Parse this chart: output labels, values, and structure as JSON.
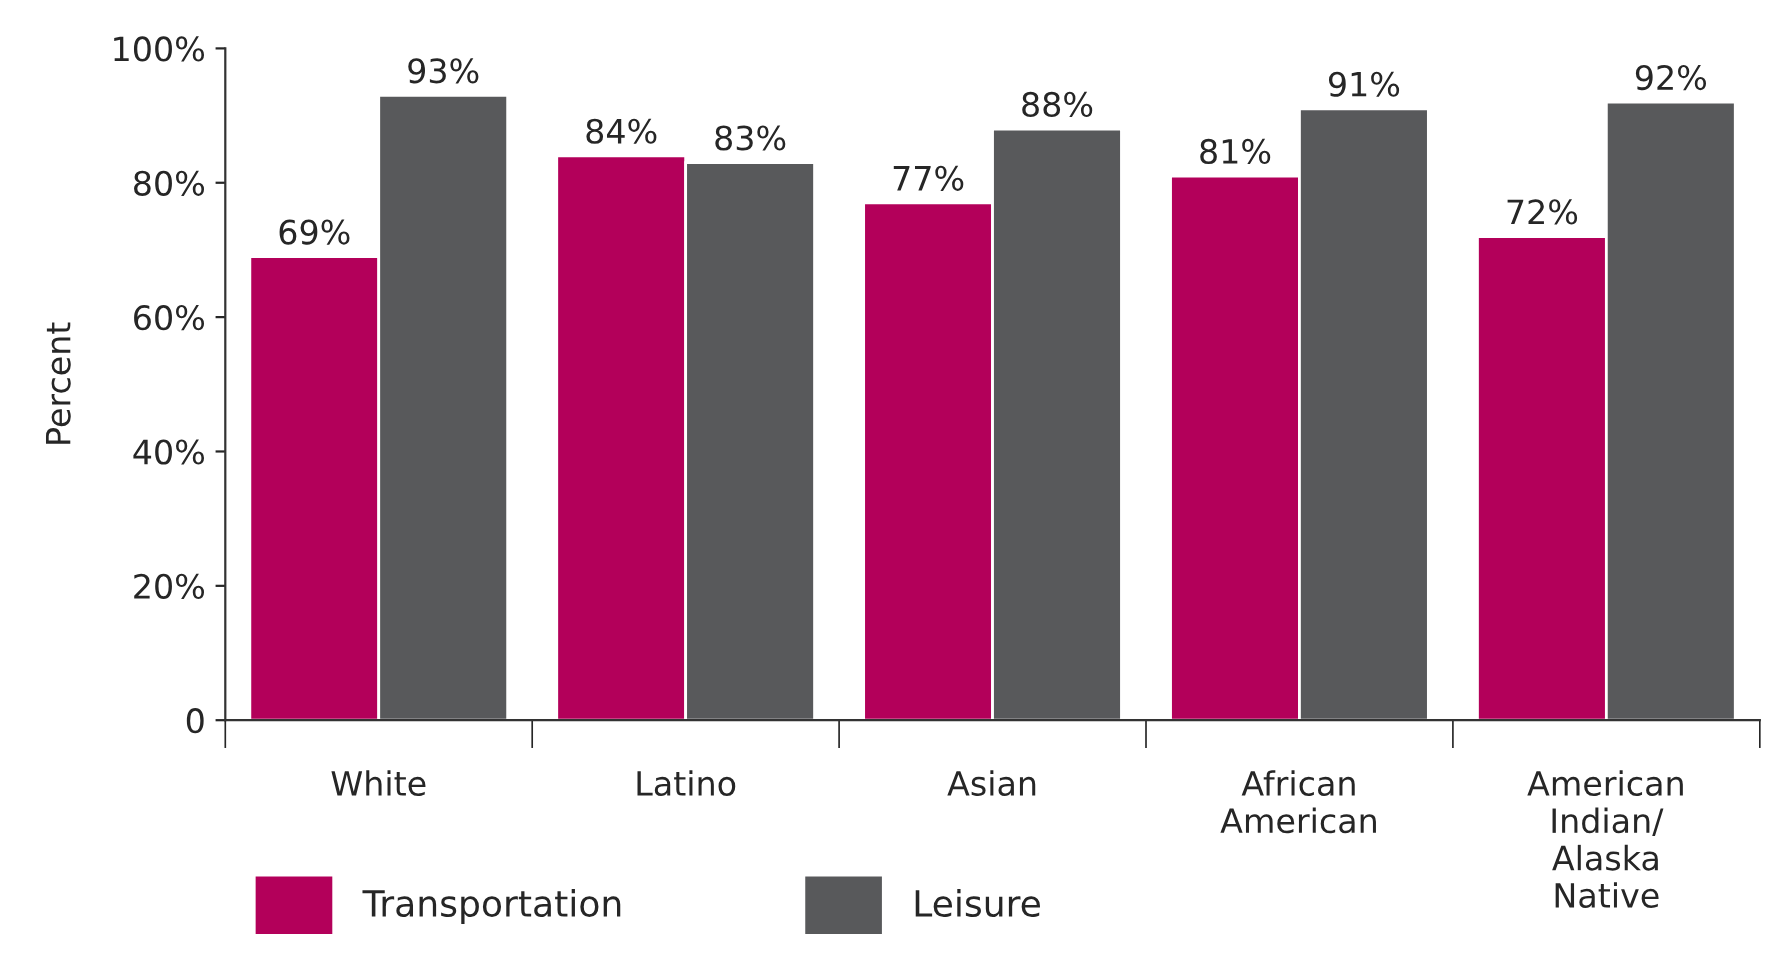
{
  "chart_data": {
    "type": "bar",
    "ylabel": "Percent",
    "categories": [
      "White",
      "Latino",
      "Asian",
      "African\nAmerican",
      "American\nIndian/\nAlaska\nNative"
    ],
    "series": [
      {
        "name": "Transportation",
        "color": "#b3005a",
        "values": [
          69,
          84,
          77,
          81,
          72
        ],
        "value_labels": [
          "69%",
          "84%",
          "77%",
          "81%",
          "72%"
        ]
      },
      {
        "name": "Leisure",
        "color": "#58595b",
        "values": [
          93,
          83,
          88,
          91,
          92
        ],
        "value_labels": [
          "93%",
          "83%",
          "88%",
          "91%",
          "92%"
        ]
      }
    ],
    "ylim": [
      0,
      100
    ],
    "yticks": [
      {
        "value": 0,
        "label": "0"
      },
      {
        "value": 20,
        "label": "20%"
      },
      {
        "value": 40,
        "label": "40%"
      },
      {
        "value": 60,
        "label": "60%"
      },
      {
        "value": 80,
        "label": "80%"
      },
      {
        "value": 100,
        "label": "100%"
      }
    ],
    "grid": false,
    "legend": "bottom left"
  }
}
